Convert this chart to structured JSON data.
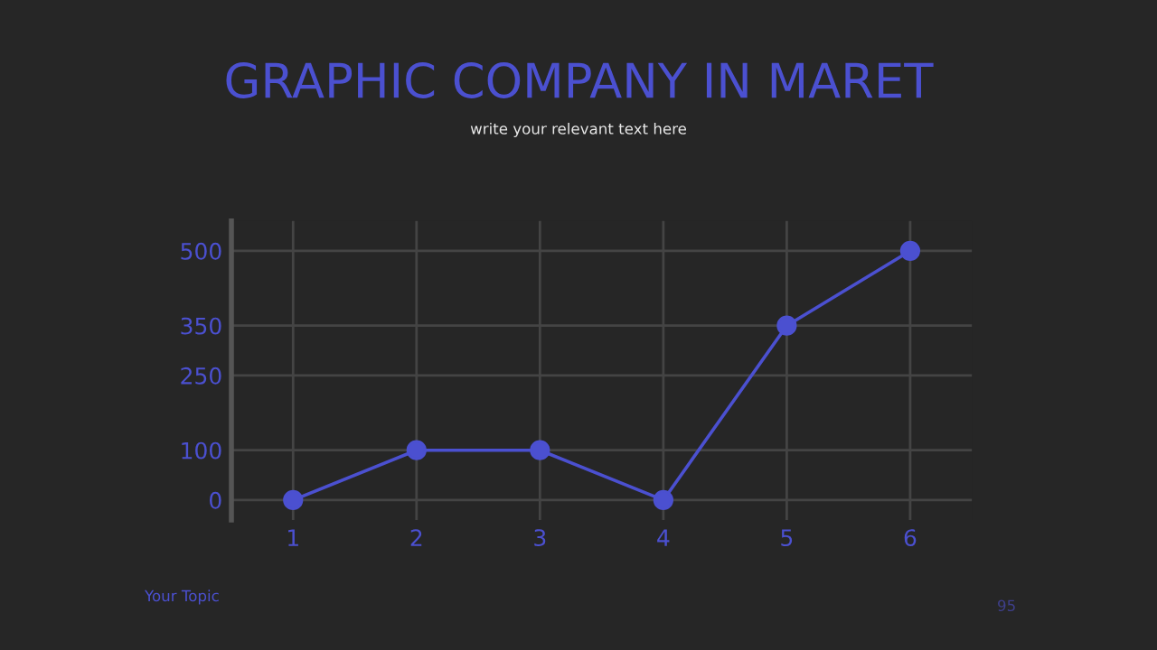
{
  "chart_data": {
    "type": "line",
    "title": "GRAPHIC COMPANY IN MARET",
    "subtitle": "write your relevant text here",
    "categories": [
      "1",
      "2",
      "3",
      "4",
      "5",
      "6"
    ],
    "series": [
      {
        "color": "#4b50d0",
        "values": [
          0,
          100,
          100,
          0,
          350,
          500
        ]
      }
    ],
    "ylim": [
      -40,
      560
    ],
    "yticks": [
      0,
      100,
      250,
      350,
      500
    ],
    "grid": true,
    "marker": "circle",
    "line_style": "solid",
    "annotations": [
      "Your Topic",
      "95"
    ]
  }
}
